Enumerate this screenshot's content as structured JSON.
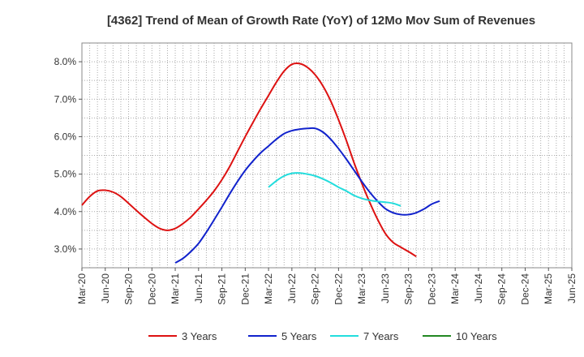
{
  "chart_data": {
    "type": "line",
    "title": "[4362]  Trend of Mean of Growth Rate (YoY) of 12Mo Mov Sum of Revenues",
    "xlabel": "",
    "ylabel": "",
    "ylim": [
      2.5,
      8.5
    ],
    "yticks": [
      3.0,
      4.0,
      5.0,
      6.0,
      7.0,
      8.0
    ],
    "ytick_labels": [
      "3.0%",
      "4.0%",
      "5.0%",
      "6.0%",
      "7.0%",
      "8.0%"
    ],
    "xticks": [
      "Mar-20",
      "Jun-20",
      "Sep-20",
      "Dec-20",
      "Mar-21",
      "Jun-21",
      "Sep-21",
      "Dec-21",
      "Mar-22",
      "Jun-22",
      "Sep-22",
      "Dec-22",
      "Mar-23",
      "Jun-23",
      "Sep-23",
      "Dec-23",
      "Mar-24",
      "Jun-24",
      "Sep-24",
      "Dec-24",
      "Mar-25",
      "Jun-25"
    ],
    "grid": true,
    "legend_position": "bottom",
    "series": [
      {
        "name": "3 Years",
        "color": "#dd1111",
        "points": [
          [
            0,
            4.17
          ],
          [
            1,
            4.4
          ],
          [
            2,
            4.55
          ],
          [
            3,
            4.57
          ],
          [
            4,
            4.52
          ],
          [
            5,
            4.4
          ],
          [
            6,
            4.22
          ],
          [
            7,
            4.03
          ],
          [
            8,
            3.85
          ],
          [
            9,
            3.68
          ],
          [
            10,
            3.55
          ],
          [
            11,
            3.5
          ],
          [
            12,
            3.55
          ],
          [
            13,
            3.68
          ],
          [
            14,
            3.85
          ],
          [
            15,
            4.07
          ],
          [
            16,
            4.3
          ],
          [
            17,
            4.55
          ],
          [
            18,
            4.85
          ],
          [
            19,
            5.2
          ],
          [
            20,
            5.6
          ],
          [
            21,
            6.0
          ],
          [
            22,
            6.38
          ],
          [
            23,
            6.75
          ],
          [
            24,
            7.1
          ],
          [
            25,
            7.45
          ],
          [
            26,
            7.75
          ],
          [
            27,
            7.93
          ],
          [
            28,
            7.95
          ],
          [
            29,
            7.85
          ],
          [
            30,
            7.65
          ],
          [
            31,
            7.35
          ],
          [
            32,
            6.95
          ],
          [
            33,
            6.45
          ],
          [
            34,
            5.9
          ],
          [
            35,
            5.3
          ],
          [
            36,
            4.75
          ],
          [
            37,
            4.25
          ],
          [
            38,
            3.8
          ],
          [
            39,
            3.42
          ],
          [
            40,
            3.18
          ],
          [
            41,
            3.05
          ],
          [
            42,
            2.93
          ],
          [
            43,
            2.8
          ]
        ]
      },
      {
        "name": "5 Years",
        "color": "#1122cc",
        "points": [
          [
            12,
            2.63
          ],
          [
            13,
            2.75
          ],
          [
            14,
            2.93
          ],
          [
            15,
            3.15
          ],
          [
            16,
            3.45
          ],
          [
            17,
            3.78
          ],
          [
            18,
            4.12
          ],
          [
            19,
            4.47
          ],
          [
            20,
            4.8
          ],
          [
            21,
            5.1
          ],
          [
            22,
            5.35
          ],
          [
            23,
            5.57
          ],
          [
            24,
            5.75
          ],
          [
            25,
            5.93
          ],
          [
            26,
            6.08
          ],
          [
            27,
            6.16
          ],
          [
            28,
            6.2
          ],
          [
            29,
            6.22
          ],
          [
            30,
            6.22
          ],
          [
            31,
            6.12
          ],
          [
            32,
            5.93
          ],
          [
            33,
            5.68
          ],
          [
            34,
            5.4
          ],
          [
            35,
            5.1
          ],
          [
            36,
            4.8
          ],
          [
            37,
            4.52
          ],
          [
            38,
            4.28
          ],
          [
            39,
            4.08
          ],
          [
            40,
            3.97
          ],
          [
            41,
            3.92
          ],
          [
            42,
            3.92
          ],
          [
            43,
            3.97
          ],
          [
            44,
            4.07
          ],
          [
            45,
            4.2
          ],
          [
            46,
            4.28
          ]
        ]
      },
      {
        "name": "7 Years",
        "color": "#22dddd",
        "points": [
          [
            24,
            4.65
          ],
          [
            25,
            4.82
          ],
          [
            26,
            4.95
          ],
          [
            27,
            5.02
          ],
          [
            28,
            5.03
          ],
          [
            29,
            5.0
          ],
          [
            30,
            4.95
          ],
          [
            31,
            4.87
          ],
          [
            32,
            4.77
          ],
          [
            33,
            4.65
          ],
          [
            34,
            4.55
          ],
          [
            35,
            4.43
          ],
          [
            36,
            4.35
          ],
          [
            37,
            4.3
          ],
          [
            38,
            4.27
          ],
          [
            39,
            4.25
          ],
          [
            40,
            4.22
          ],
          [
            41,
            4.15
          ]
        ]
      },
      {
        "name": "10 Years",
        "color": "#228822",
        "points": []
      }
    ]
  }
}
